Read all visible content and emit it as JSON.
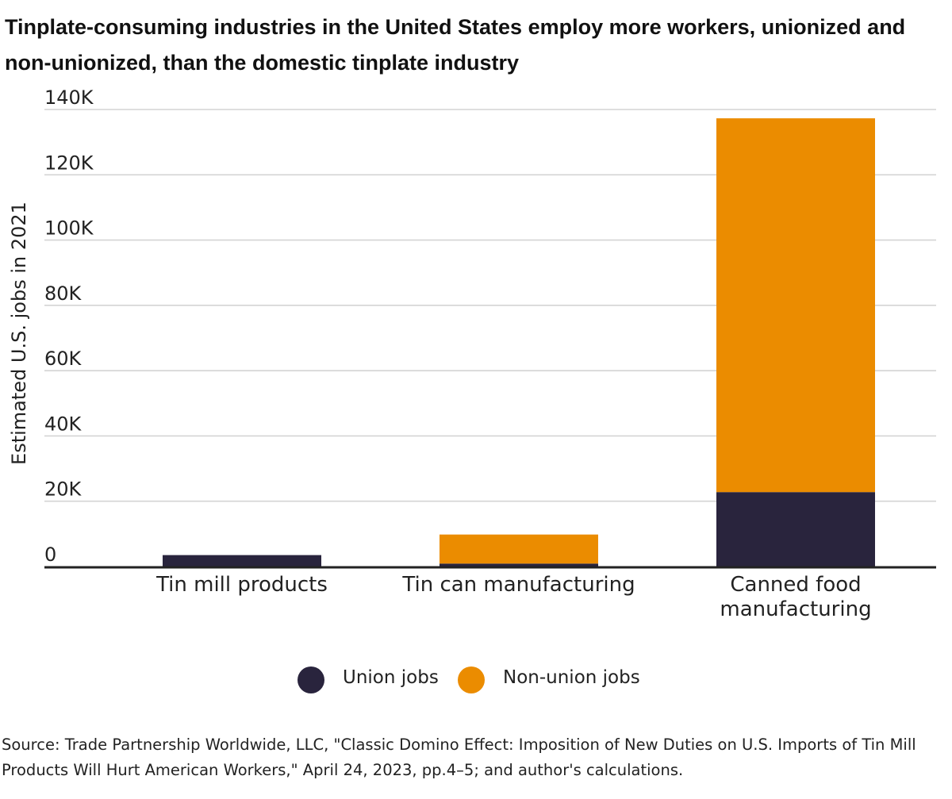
{
  "chart_data": {
    "type": "bar",
    "stacked": true,
    "title": "Tinplate-consuming industries in the United States employ more workers, unionized and non-unionized, than the domestic tinplate industry",
    "xlabel": "",
    "ylabel": "Estimated U.S. jobs in 2021",
    "ylim": [
      0,
      140000
    ],
    "yticks": [
      0,
      20000,
      40000,
      60000,
      80000,
      100000,
      120000,
      140000
    ],
    "ytick_labels": [
      "0",
      "20K",
      "40K",
      "60K",
      "80K",
      "100K",
      "120K",
      "140K"
    ],
    "grid": true,
    "categories": [
      [
        "Tin mill products"
      ],
      [
        "Tin can manufacturing"
      ],
      [
        "Canned food",
        "manufacturing"
      ]
    ],
    "series": [
      {
        "name": "Union jobs",
        "color": "#29243d",
        "values": [
          3500,
          900,
          22800
        ]
      },
      {
        "name": "Non-union jobs",
        "color": "#eb8c00",
        "values": [
          0,
          8900,
          114500
        ]
      }
    ],
    "legend_position": "bottom-center",
    "source": "Source: Trade Partnership Worldwide, LLC, \"Classic Domino Effect: Imposition of New Duties on U.S. Imports of Tin Mill Products Will Hurt American Workers,\" April 24, 2023, pp.4–5; and author's calculations."
  }
}
